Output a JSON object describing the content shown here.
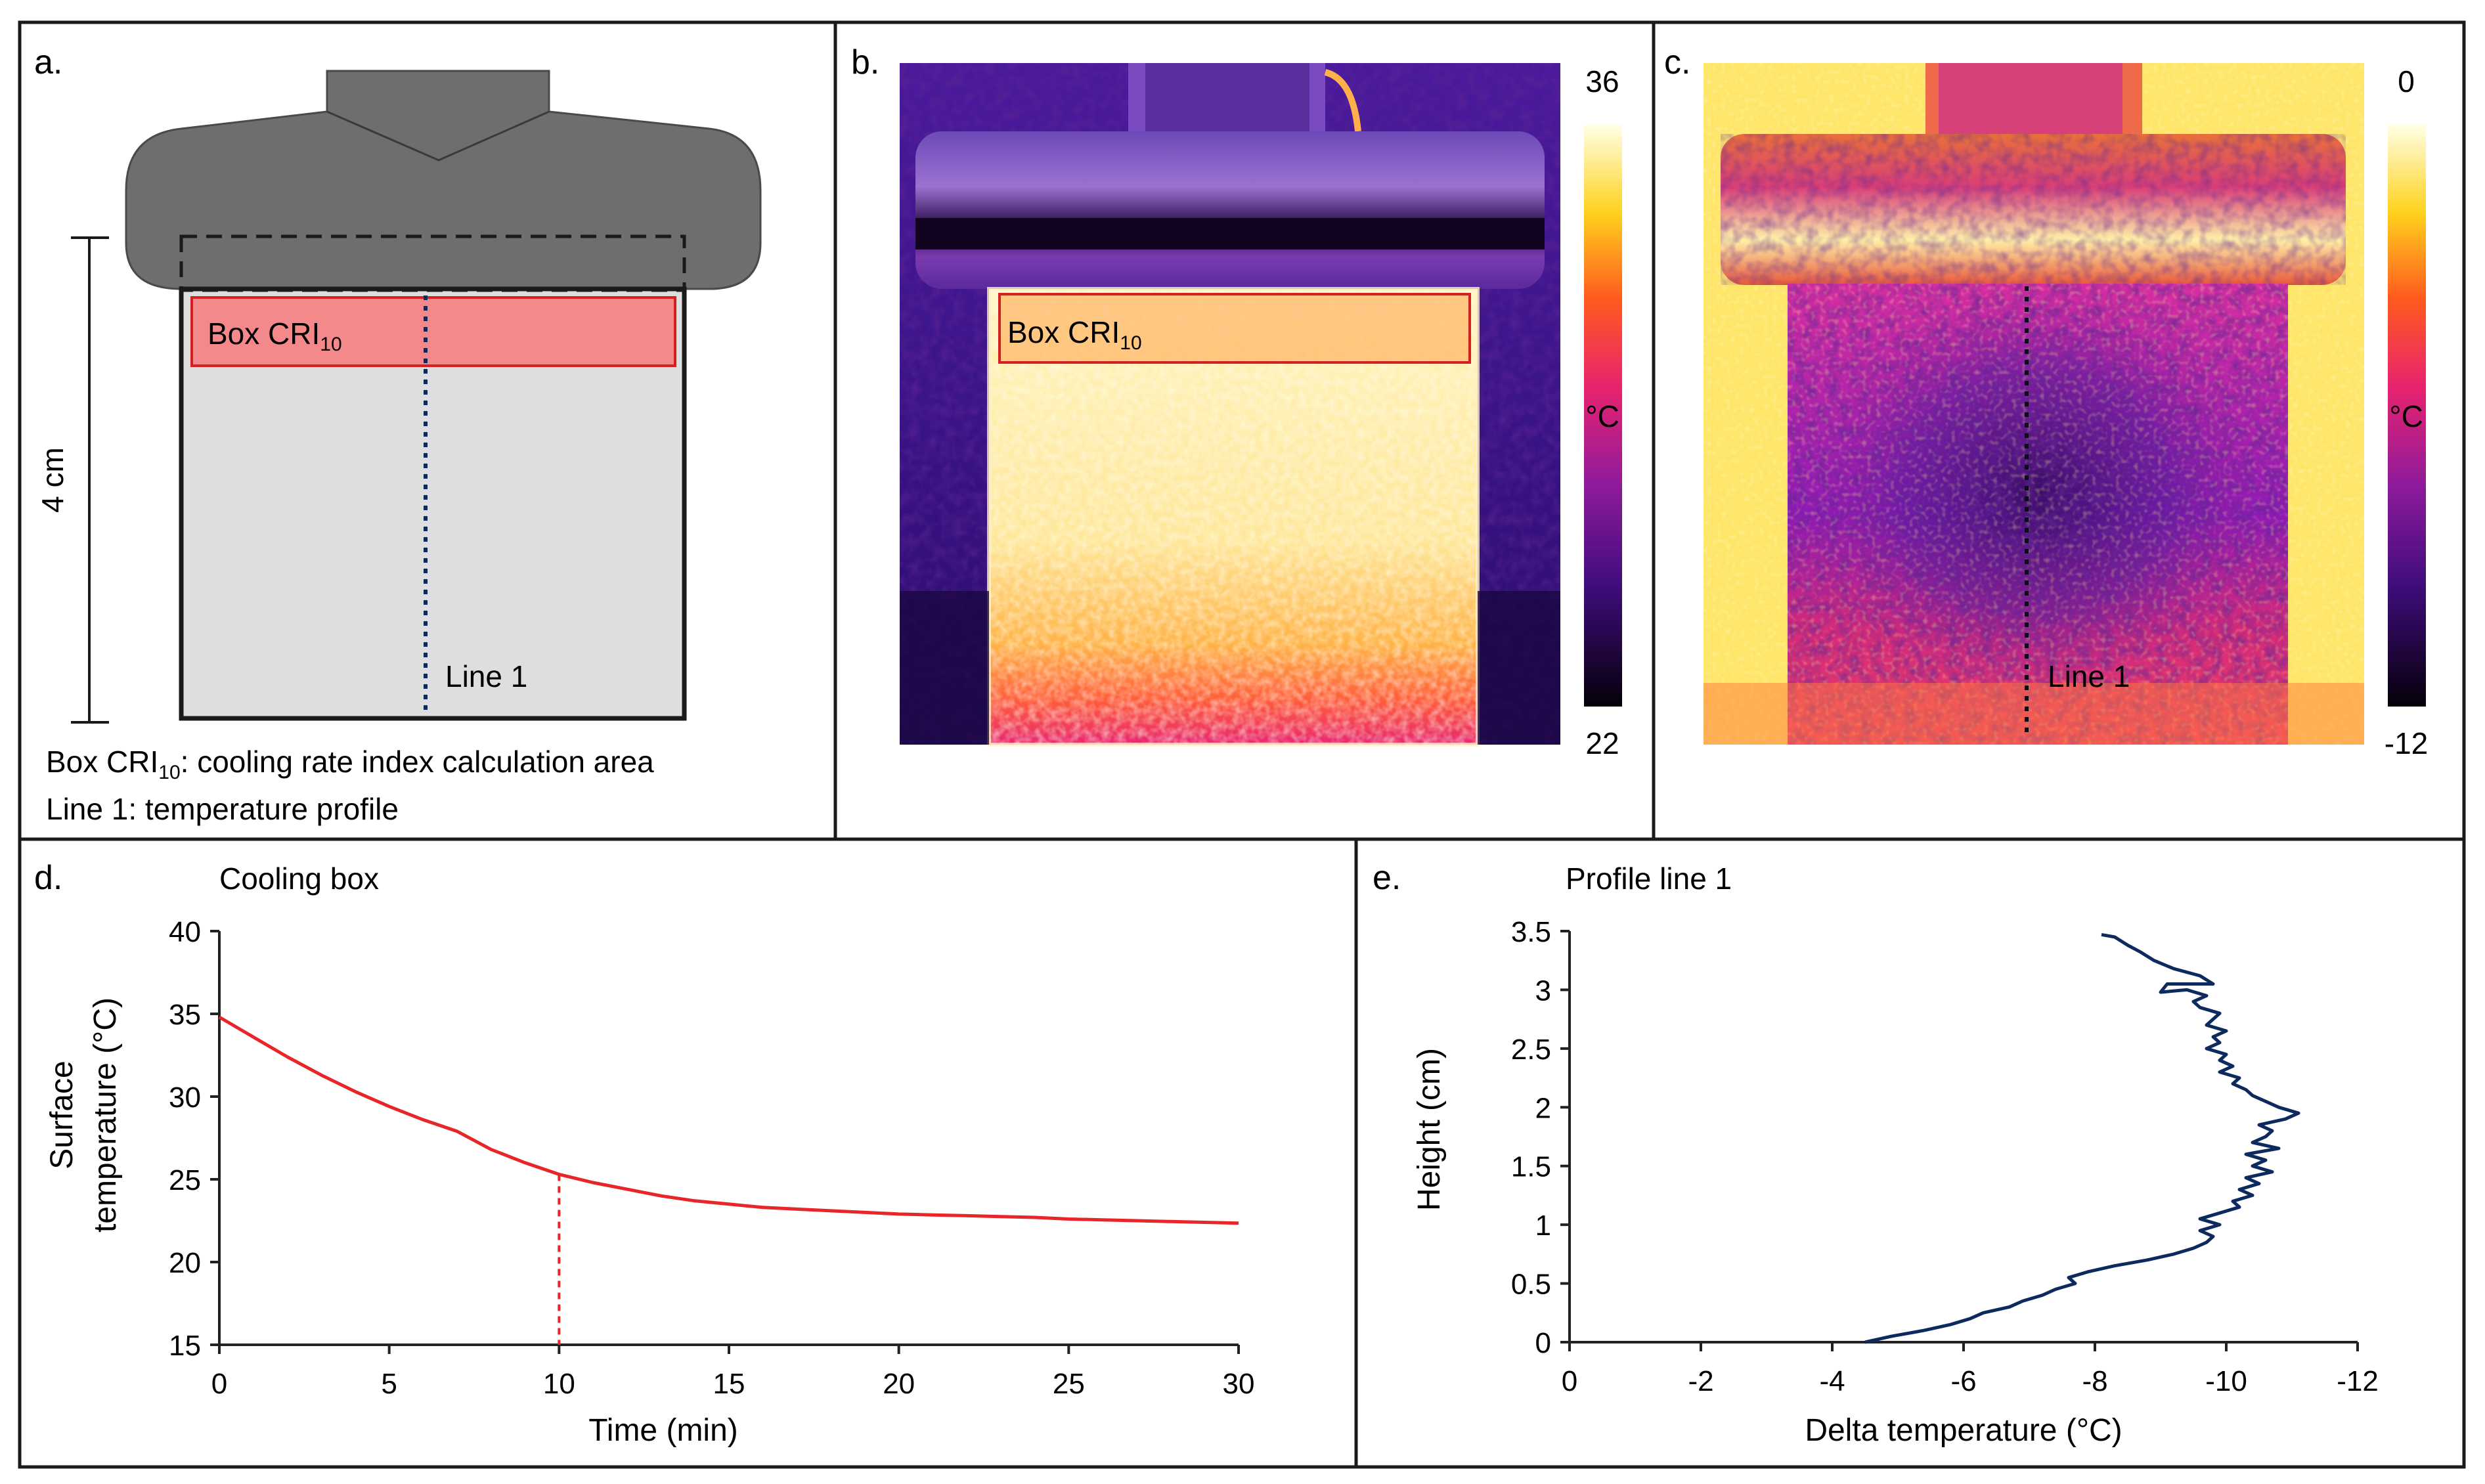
{
  "panels": {
    "a": {
      "letter": "a.",
      "box_label": "Box CRI",
      "box_sub": "10",
      "line_label": "Line 1",
      "scale_label": "4 cm",
      "legend_line1_pre": "Box CRI",
      "legend_line1_sub": "10",
      "legend_line1_post": ": cooling rate index calculation area",
      "legend_line2": "Line 1: temperature  profile"
    },
    "b": {
      "letter": "b.",
      "box_label": "Box CRI",
      "box_sub": "10",
      "scale_max": "36",
      "scale_min": "22",
      "unit": "°C"
    },
    "c": {
      "letter": "c.",
      "line_label": "Line 1",
      "scale_max": "0",
      "scale_min": "-12",
      "unit": "°C"
    },
    "d": {
      "letter": "d."
    },
    "e": {
      "letter": "e."
    }
  },
  "colors": {
    "cooling_curve": "#e8262a",
    "profile_curve": "#0d2a5e",
    "box_fill": "#f4898c",
    "box_stroke": "#d42020",
    "specimen_fill": "#dedede",
    "holder_fill": "#6e6e6e"
  },
  "chart_data": [
    {
      "id": "d",
      "type": "line",
      "title": "Cooling box",
      "xlabel": "Time (min)",
      "ylabel": [
        "Surface",
        "temperature (°C)"
      ],
      "xlim": [
        0,
        30
      ],
      "ylim": [
        15,
        40
      ],
      "xticks": [
        0,
        5,
        10,
        15,
        20,
        25,
        30
      ],
      "yticks": [
        15,
        20,
        25,
        30,
        35,
        40
      ],
      "grid": false,
      "marker_x": 10,
      "series": [
        {
          "name": "Cooling box",
          "x": [
            0,
            1,
            2,
            3,
            4,
            5,
            6,
            7,
            8,
            9,
            10,
            11,
            12,
            13,
            14,
            15,
            16,
            17,
            18,
            19,
            20,
            21,
            22,
            23,
            24,
            25,
            26,
            27,
            28,
            29,
            30
          ],
          "y": [
            34.8,
            33.6,
            32.4,
            31.3,
            30.3,
            29.4,
            28.6,
            27.9,
            26.8,
            26.0,
            25.3,
            24.8,
            24.4,
            24.0,
            23.7,
            23.5,
            23.3,
            23.2,
            23.1,
            23.0,
            22.9,
            22.85,
            22.8,
            22.75,
            22.7,
            22.6,
            22.55,
            22.5,
            22.45,
            22.4,
            22.35
          ]
        }
      ]
    },
    {
      "id": "e",
      "type": "line",
      "title": "Profile line 1",
      "xlabel": "Delta temperature  (°C)",
      "ylabel": "Height (cm)",
      "xlim": [
        0,
        -12
      ],
      "ylim": [
        0,
        3.5
      ],
      "xticks": [
        0,
        -2,
        -4,
        -6,
        -8,
        -10,
        -12
      ],
      "yticks": [
        0,
        0.5,
        1,
        1.5,
        2,
        2.5,
        3,
        3.5
      ],
      "ytick_labels": [
        "0",
        "0.5",
        "1",
        "1.5",
        "2",
        "2.5",
        "3",
        "3.5"
      ],
      "grid": false,
      "series": [
        {
          "name": "Profile line 1",
          "points": [
            [
              -4.5,
              0.0
            ],
            [
              -4.9,
              0.05
            ],
            [
              -5.4,
              0.1
            ],
            [
              -5.8,
              0.15
            ],
            [
              -6.1,
              0.2
            ],
            [
              -6.3,
              0.25
            ],
            [
              -6.7,
              0.3
            ],
            [
              -6.9,
              0.35
            ],
            [
              -7.2,
              0.4
            ],
            [
              -7.4,
              0.45
            ],
            [
              -7.7,
              0.5
            ],
            [
              -7.6,
              0.55
            ],
            [
              -7.9,
              0.6
            ],
            [
              -8.3,
              0.65
            ],
            [
              -8.8,
              0.7
            ],
            [
              -9.2,
              0.75
            ],
            [
              -9.5,
              0.8
            ],
            [
              -9.7,
              0.85
            ],
            [
              -9.8,
              0.9
            ],
            [
              -9.6,
              0.95
            ],
            [
              -9.9,
              1.0
            ],
            [
              -9.6,
              1.05
            ],
            [
              -9.9,
              1.1
            ],
            [
              -10.2,
              1.15
            ],
            [
              -10.1,
              1.2
            ],
            [
              -10.4,
              1.25
            ],
            [
              -10.2,
              1.3
            ],
            [
              -10.5,
              1.35
            ],
            [
              -10.3,
              1.4
            ],
            [
              -10.7,
              1.45
            ],
            [
              -10.4,
              1.5
            ],
            [
              -10.6,
              1.55
            ],
            [
              -10.3,
              1.6
            ],
            [
              -10.8,
              1.65
            ],
            [
              -10.4,
              1.7
            ],
            [
              -10.6,
              1.75
            ],
            [
              -10.7,
              1.8
            ],
            [
              -10.5,
              1.85
            ],
            [
              -10.9,
              1.9
            ],
            [
              -11.1,
              1.95
            ],
            [
              -10.8,
              2.0
            ],
            [
              -10.6,
              2.05
            ],
            [
              -10.4,
              2.1
            ],
            [
              -10.3,
              2.15
            ],
            [
              -10.1,
              2.2
            ],
            [
              -10.2,
              2.25
            ],
            [
              -9.9,
              2.3
            ],
            [
              -10.1,
              2.35
            ],
            [
              -9.9,
              2.4
            ],
            [
              -10.0,
              2.45
            ],
            [
              -9.7,
              2.5
            ],
            [
              -9.9,
              2.55
            ],
            [
              -9.8,
              2.6
            ],
            [
              -10.0,
              2.65
            ],
            [
              -9.7,
              2.7
            ],
            [
              -9.8,
              2.75
            ],
            [
              -9.9,
              2.8
            ],
            [
              -9.6,
              2.85
            ],
            [
              -9.5,
              2.9
            ],
            [
              -9.7,
              2.95
            ],
            [
              -9.4,
              3.0
            ],
            [
              -9.0,
              2.98
            ],
            [
              -9.1,
              3.05
            ],
            [
              -9.8,
              3.05
            ],
            [
              -9.6,
              3.12
            ],
            [
              -9.2,
              3.18
            ],
            [
              -8.9,
              3.25
            ],
            [
              -8.7,
              3.32
            ],
            [
              -8.5,
              3.38
            ],
            [
              -8.3,
              3.45
            ],
            [
              -8.1,
              3.47
            ]
          ]
        }
      ]
    }
  ]
}
